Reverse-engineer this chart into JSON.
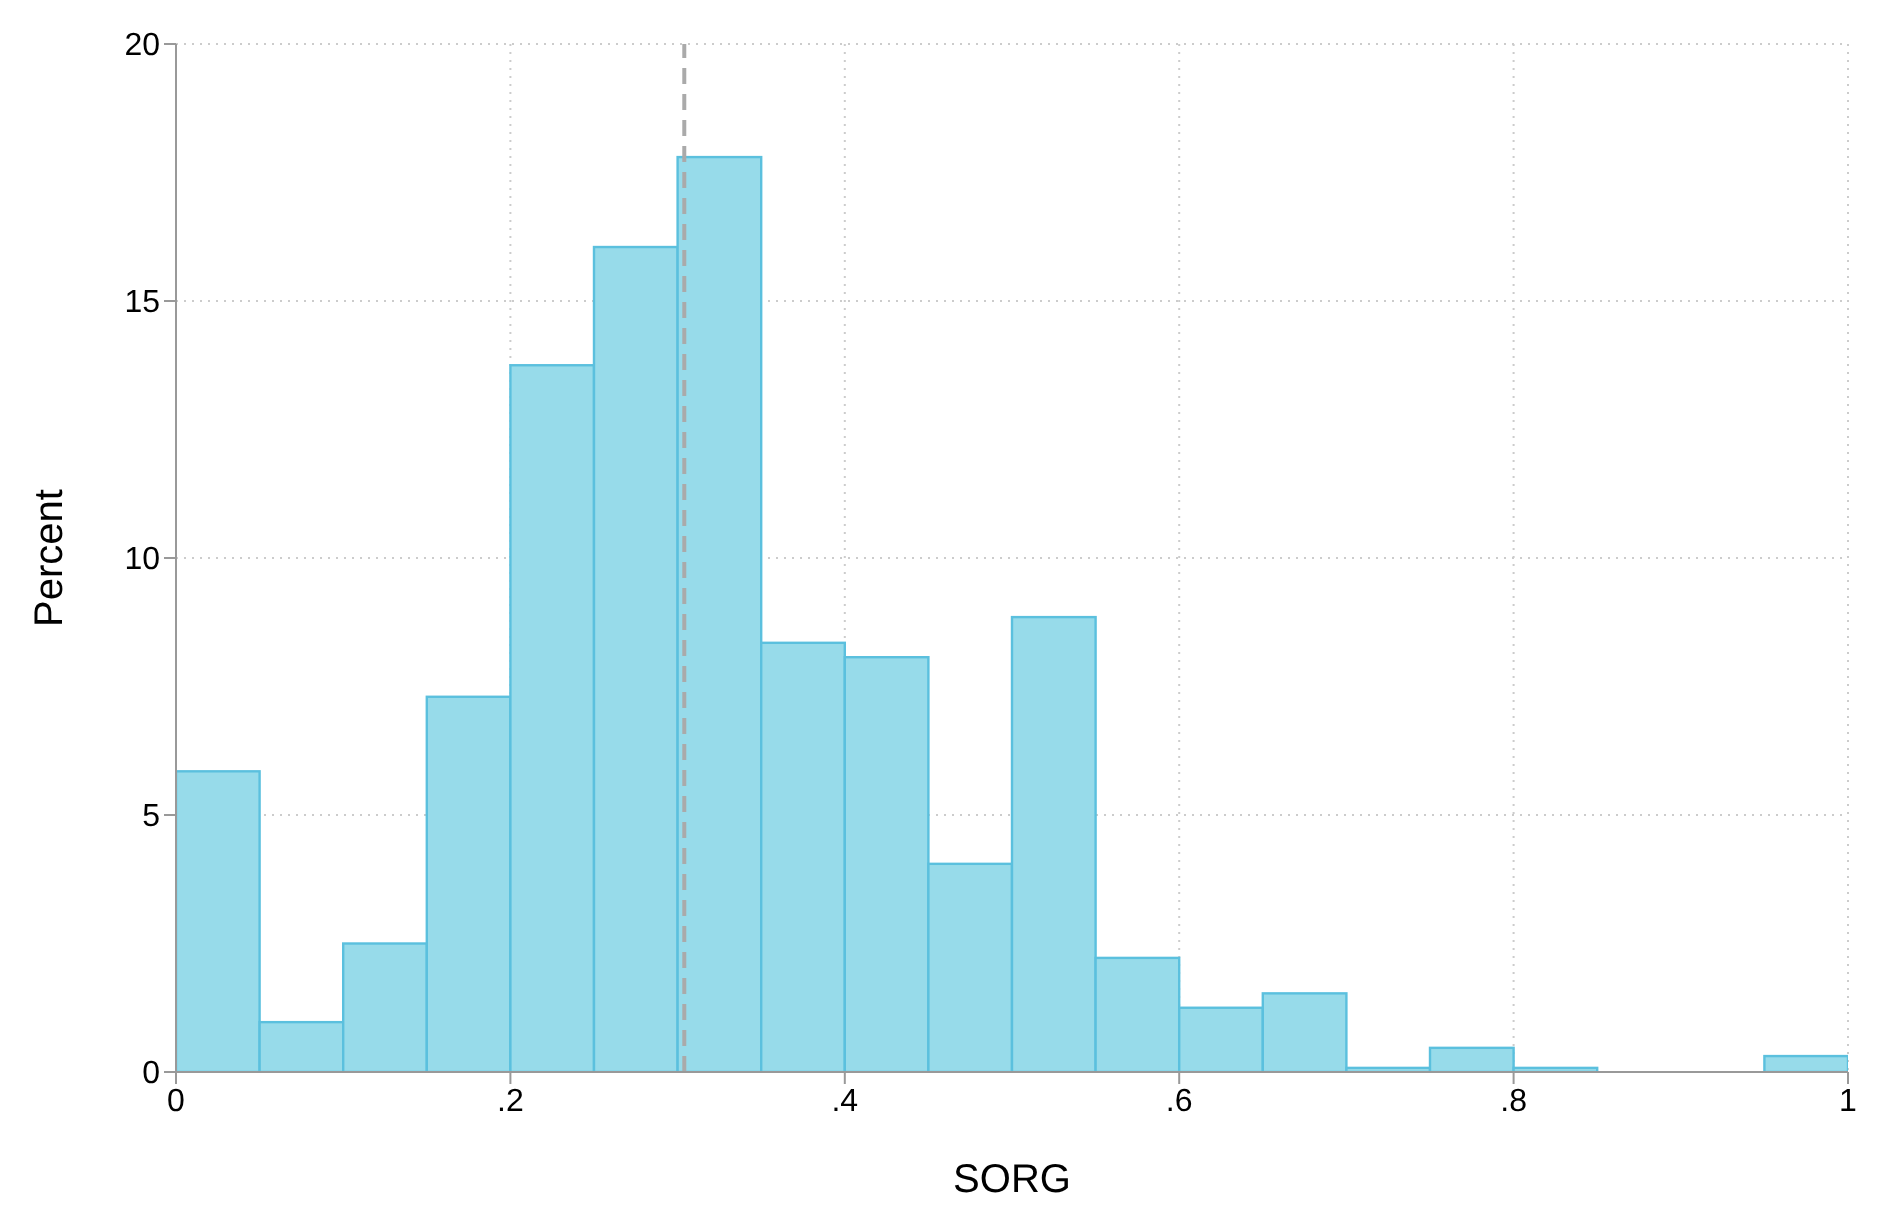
{
  "chart_data": {
    "type": "histogram",
    "xlabel": "SORG",
    "ylabel": "Percent",
    "bins": [
      0,
      0.05,
      0.1,
      0.15,
      0.2,
      0.25,
      0.3,
      0.35,
      0.4,
      0.45,
      0.5,
      0.55,
      0.6,
      0.65,
      0.7,
      0.75,
      0.8,
      0.85,
      0.9,
      0.95,
      1
    ],
    "values": [
      5.85,
      0.97,
      2.5,
      7.3,
      13.75,
      16.05,
      17.8,
      8.35,
      8.07,
      4.05,
      8.85,
      2.22,
      1.25,
      1.53,
      0.08,
      0.47,
      0.08,
      0,
      0,
      0.31
    ],
    "color": "#97dbea",
    "xlim": [
      0,
      1
    ],
    "xticks": [
      0,
      {
        "value": 0.2,
        "label": ".2"
      },
      {
        "value": 0.4,
        "label": ".4"
      },
      {
        "value": 0.6,
        "label": ".6"
      },
      {
        "value": 0.8,
        "label": ".8"
      },
      1
    ],
    "ylim": [
      0,
      20
    ],
    "yticks": [
      0,
      5,
      10,
      15,
      20
    ],
    "grid": true,
    "ref_lines": [
      {
        "axis": "x",
        "value": 0.304,
        "color": "#aaaaaa",
        "line_style": "dashed"
      }
    ]
  }
}
